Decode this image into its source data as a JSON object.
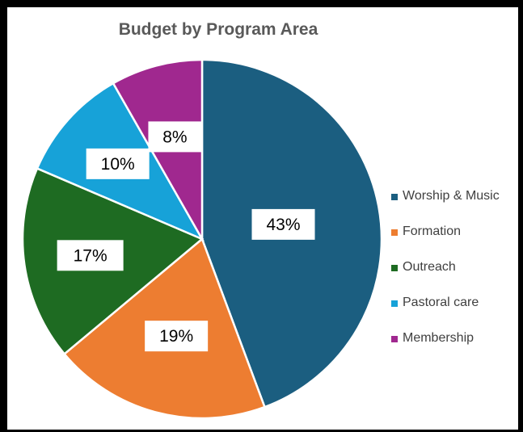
{
  "chart_data": {
    "type": "pie",
    "title": "Budget by Program Area",
    "categories": [
      "Worship & Music",
      "Formation",
      "Outreach",
      "Pastoral care",
      "Membership"
    ],
    "values": [
      43,
      19,
      17,
      10,
      8
    ],
    "data_labels": [
      "43%",
      "19%",
      "17%",
      "10%",
      "8%"
    ],
    "colors": [
      "#1b5e80",
      "#ed7d31",
      "#1e6b22",
      "#17a2d8",
      "#a0288f"
    ],
    "legend_position": "right"
  }
}
